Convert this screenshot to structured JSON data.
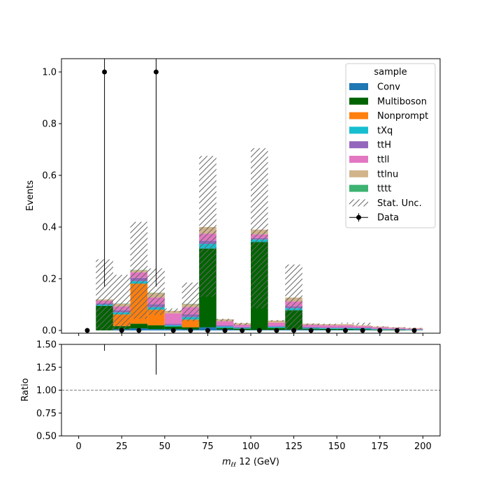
{
  "chart_data": {
    "type": "bar",
    "stacked": true,
    "x_label": "$m_{\\ell\\ell}$ 12 (GeV)",
    "x_label_parts": {
      "m": "m",
      "sub": "ℓℓ",
      "rest": " 12 (GeV)"
    },
    "y_label": "Events",
    "ratio_y_label": "Ratio",
    "xlim": [
      -10,
      210
    ],
    "ylim": [
      0,
      1.05
    ],
    "ratio_ylim": [
      0.5,
      1.5
    ],
    "x_ticks": [
      0,
      25,
      50,
      75,
      100,
      125,
      150,
      175,
      200
    ],
    "x_tick_labels": [
      "0",
      "25",
      "50",
      "75",
      "100",
      "125",
      "150",
      "175",
      "200"
    ],
    "y_ticks": [
      0.0,
      0.2,
      0.4,
      0.6,
      0.8,
      1.0
    ],
    "y_tick_labels": [
      "0.0",
      "0.2",
      "0.4",
      "0.6",
      "0.8",
      "1.0"
    ],
    "ratio_y_ticks": [
      0.5,
      0.75,
      1.0,
      1.25,
      1.5
    ],
    "ratio_y_tick_labels": [
      "0.50",
      "0.75",
      "1.00",
      "1.25",
      "1.50"
    ],
    "bin_edges": [
      10,
      20,
      30,
      40,
      50,
      60,
      70,
      80,
      90,
      100,
      110,
      120,
      130,
      140,
      150,
      160,
      170,
      180,
      190,
      200
    ],
    "series": [
      {
        "name": "Conv",
        "color": "#1f77b4",
        "values": [
          0.0,
          0.005,
          0.008,
          0.005,
          0.005,
          0.004,
          0.012,
          0.004,
          0.002,
          0.002,
          0.002,
          0.003,
          0.003,
          0.002,
          0.002,
          0.002,
          0.001,
          0.001,
          0.001
        ]
      },
      {
        "name": "Multiboson",
        "color": "#006400",
        "values": [
          0.095,
          0.012,
          0.018,
          0.015,
          0.01,
          0.008,
          0.305,
          0.006,
          0.005,
          0.34,
          0.008,
          0.075,
          0.004,
          0.004,
          0.004,
          0.003,
          0.002,
          0.002,
          0.001
        ]
      },
      {
        "name": "Nonprompt",
        "color": "#ff7f0e",
        "values": [
          0.0,
          0.045,
          0.155,
          0.06,
          0.0,
          0.03,
          0.0,
          0.0,
          0.0,
          0.0,
          0.0,
          0.0,
          0.0,
          0.0,
          0.0,
          0.0,
          0.0,
          0.0,
          0.0
        ]
      },
      {
        "name": "tXq",
        "color": "#17becf",
        "values": [
          0.005,
          0.008,
          0.01,
          0.01,
          0.005,
          0.01,
          0.018,
          0.005,
          0.003,
          0.01,
          0.004,
          0.008,
          0.003,
          0.003,
          0.003,
          0.003,
          0.002,
          0.001,
          0.001
        ]
      },
      {
        "name": "ttH",
        "color": "#9467bd",
        "values": [
          0.005,
          0.008,
          0.012,
          0.012,
          0.006,
          0.01,
          0.012,
          0.005,
          0.004,
          0.005,
          0.004,
          0.008,
          0.004,
          0.003,
          0.003,
          0.003,
          0.002,
          0.002,
          0.001
        ]
      },
      {
        "name": "ttll",
        "color": "#e377c2",
        "values": [
          0.01,
          0.015,
          0.022,
          0.025,
          0.04,
          0.028,
          0.028,
          0.015,
          0.008,
          0.015,
          0.012,
          0.018,
          0.008,
          0.008,
          0.008,
          0.006,
          0.005,
          0.004,
          0.003
        ]
      },
      {
        "name": "ttlnu",
        "color": "#d2b48c",
        "values": [
          0.005,
          0.01,
          0.008,
          0.018,
          0.01,
          0.012,
          0.025,
          0.008,
          0.006,
          0.018,
          0.008,
          0.015,
          0.004,
          0.004,
          0.004,
          0.003,
          0.003,
          0.002,
          0.002
        ]
      },
      {
        "name": "tttt",
        "color": "#3cb371",
        "values": [
          0.0,
          0.001,
          0.001,
          0.001,
          0.0,
          0.001,
          0.0,
          0.0,
          0.0,
          0.0,
          0.0,
          0.0,
          0.0,
          0.0,
          0.0,
          0.0,
          0.0,
          0.0,
          0.0
        ]
      }
    ],
    "stat_unc": {
      "name": "Stat. Unc.",
      "up": [
        0.275,
        0.215,
        0.42,
        0.24,
        0.085,
        0.185,
        0.675,
        0.045,
        0.03,
        0.705,
        0.04,
        0.255,
        0.027,
        0.026,
        0.03,
        0.03,
        0.016,
        0.012,
        0.01
      ],
      "down": [
        0.0,
        0.0,
        0.045,
        0.06,
        0.07,
        0.035,
        0.13,
        0.035,
        0.02,
        0.085,
        0.035,
        0.0,
        0.02,
        0.02,
        0.026,
        0.02,
        0.012,
        0.008,
        0.006
      ]
    },
    "data": {
      "name": "Data",
      "x": [
        5,
        15,
        25,
        35,
        45,
        55,
        65,
        75,
        85,
        95,
        105,
        115,
        125,
        135,
        145,
        155,
        165,
        175,
        185,
        195
      ],
      "y": [
        0,
        1,
        0,
        0,
        1,
        0,
        0,
        0,
        0,
        0,
        0,
        0,
        0,
        0,
        0,
        0,
        0,
        0,
        0,
        0
      ],
      "err_up": [
        1.84,
        1.84,
        1.84,
        1.84,
        1.84,
        1.84,
        1.84,
        1.84,
        1.84,
        1.84,
        1.84,
        1.84,
        1.84,
        1.84,
        1.84,
        1.84,
        1.84,
        1.84,
        1.84,
        1.84
      ],
      "err_down": [
        0,
        0.83,
        0,
        0,
        0.83,
        0,
        0,
        0,
        0,
        0,
        0,
        0,
        0,
        0,
        0,
        0,
        0,
        0,
        0,
        0
      ]
    },
    "ratio": {
      "x": [
        15,
        45
      ],
      "low": [
        1.43,
        1.17
      ],
      "high": [
        1.6,
        1.6
      ],
      "reference": 1.0
    },
    "legend": {
      "title": "sample",
      "placement": "top-right",
      "entries": [
        "Conv",
        "Multiboson",
        "Nonprompt",
        "tXq",
        "ttH",
        "ttll",
        "ttlnu",
        "tttt",
        "Stat. Unc.",
        "Data"
      ]
    }
  }
}
